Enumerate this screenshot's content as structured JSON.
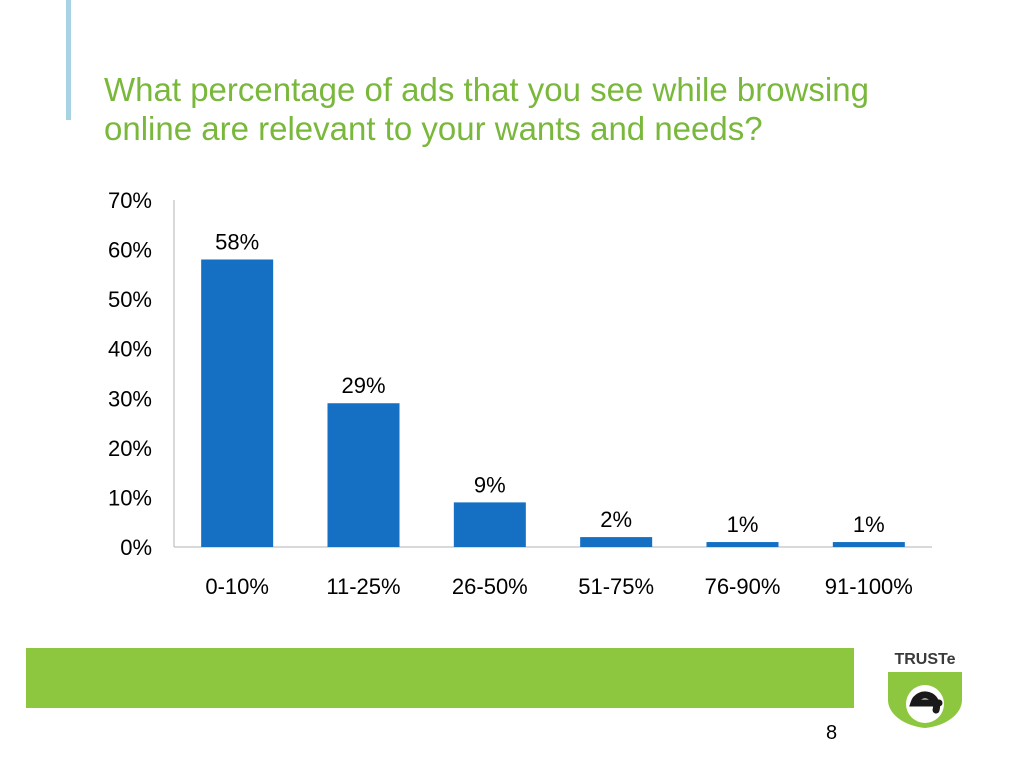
{
  "slide": {
    "title": "What percentage of ads that you see while browsing online are relevant to your wants and needs?",
    "page_number": "8"
  },
  "logo": {
    "text": "TRUSTe",
    "icon": "truste-e-seal",
    "color": "#8dc63f"
  },
  "colors": {
    "title": "#7ab83c",
    "bar": "#1570c3",
    "footer_band": "#8dc63f",
    "accent_bar": "#a7d3e5"
  },
  "chart_data": {
    "type": "bar",
    "title": "",
    "xlabel": "",
    "ylabel": "",
    "categories": [
      "0-10%",
      "11-25%",
      "26-50%",
      "51-75%",
      "76-90%",
      "91-100%"
    ],
    "values": [
      58,
      29,
      9,
      2,
      1,
      1
    ],
    "data_labels": [
      "58%",
      "29%",
      "9%",
      "2%",
      "1%",
      "1%"
    ],
    "yticks": [
      0,
      10,
      20,
      30,
      40,
      50,
      60,
      70
    ],
    "ytick_labels": [
      "0%",
      "10%",
      "20%",
      "30%",
      "40%",
      "50%",
      "60%",
      "70%"
    ],
    "ylim": [
      0,
      70
    ],
    "grid": false,
    "legend": "none"
  }
}
